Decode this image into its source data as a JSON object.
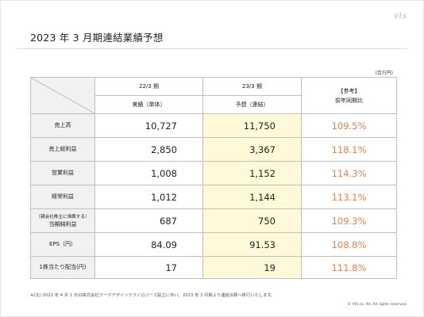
{
  "logo": "vis",
  "title": "2023 年 3 月期連結業績予想",
  "unit": "(百万円)",
  "columns": {
    "prev_period": "22/3 期",
    "prev_sub": "実績（単体）",
    "cur_period": "23/3 期",
    "cur_sub": "予想（連結）",
    "ref_label": "【参考】",
    "ref_sub": "前年同期比"
  },
  "rows": [
    {
      "label_small": "",
      "label": "売上高",
      "actual": "10,727",
      "forecast": "11,750",
      "yoy": "109.5%"
    },
    {
      "label_small": "",
      "label": "売上総利益",
      "actual": "2,850",
      "forecast": "3,367",
      "yoy": "118.1%"
    },
    {
      "label_small": "",
      "label": "営業利益",
      "actual": "1,008",
      "forecast": "1,152",
      "yoy": "114.3%"
    },
    {
      "label_small": "",
      "label": "経常利益",
      "actual": "1,012",
      "forecast": "1,144",
      "yoy": "113.1%"
    },
    {
      "label_small": "（親会社株主に帰属する）",
      "label": "当期純利益",
      "actual": "687",
      "forecast": "750",
      "yoy": "109.3%"
    },
    {
      "label_small": "",
      "label": "EPS（円）",
      "actual": "84.09",
      "forecast": "91.53",
      "yoy": "108.8%"
    },
    {
      "label_small": "",
      "label": "1株当たり配当(円)",
      "actual": "17",
      "forecast": "19",
      "yoy": "111.8%"
    }
  ],
  "note": "※(注) 2022 年 4 月 1 日の株式会社ワークデザインテクノロジーズ設立に伴い、2023 年 3 月期より連結決算へ移行いたします。",
  "copyright": "© VIS co. ltd. All rights reserved.",
  "colors": {
    "forecast_bg": "#fff8d9",
    "yoy_text": "#e8804d",
    "label_bg": "#f1f1f1"
  }
}
